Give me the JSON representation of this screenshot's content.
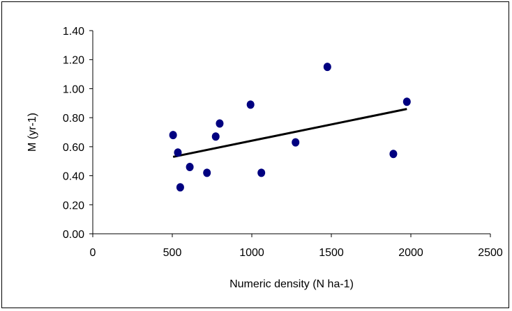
{
  "chart_data": {
    "type": "scatter",
    "title": "",
    "xlabel": "Numeric density (N ha-1)",
    "ylabel": "M (yr-1)",
    "xlim": [
      0,
      2500
    ],
    "ylim": [
      0,
      1.4
    ],
    "xticks": [
      0,
      500,
      1000,
      1500,
      2000,
      2500
    ],
    "xtick_labels": [
      "0",
      "500",
      "1000",
      "1500",
      "2000",
      "2500"
    ],
    "yticks": [
      0,
      0.2,
      0.4,
      0.6,
      0.8,
      1.0,
      1.2,
      1.4
    ],
    "ytick_labels": [
      "0.00",
      "0.20",
      "0.40",
      "0.60",
      "0.80",
      "1.00",
      "1.20",
      "1.40"
    ],
    "grid": false,
    "legend": "none",
    "series": [
      {
        "points": [
          {
            "x": 505,
            "y": 0.68
          },
          {
            "x": 535,
            "y": 0.56
          },
          {
            "x": 550,
            "y": 0.32
          },
          {
            "x": 610,
            "y": 0.46
          },
          {
            "x": 718,
            "y": 0.42
          },
          {
            "x": 773,
            "y": 0.67
          },
          {
            "x": 798,
            "y": 0.76
          },
          {
            "x": 992,
            "y": 0.89
          },
          {
            "x": 1060,
            "y": 0.42
          },
          {
            "x": 1275,
            "y": 0.63
          },
          {
            "x": 1475,
            "y": 1.15
          },
          {
            "x": 1890,
            "y": 0.55
          },
          {
            "x": 1975,
            "y": 0.91
          }
        ],
        "color": "#000080"
      }
    ],
    "trendline": {
      "type": "linear",
      "from": {
        "x": 505,
        "y": 0.53
      },
      "to": {
        "x": 1975,
        "y": 0.86
      },
      "color": "#000000"
    }
  }
}
